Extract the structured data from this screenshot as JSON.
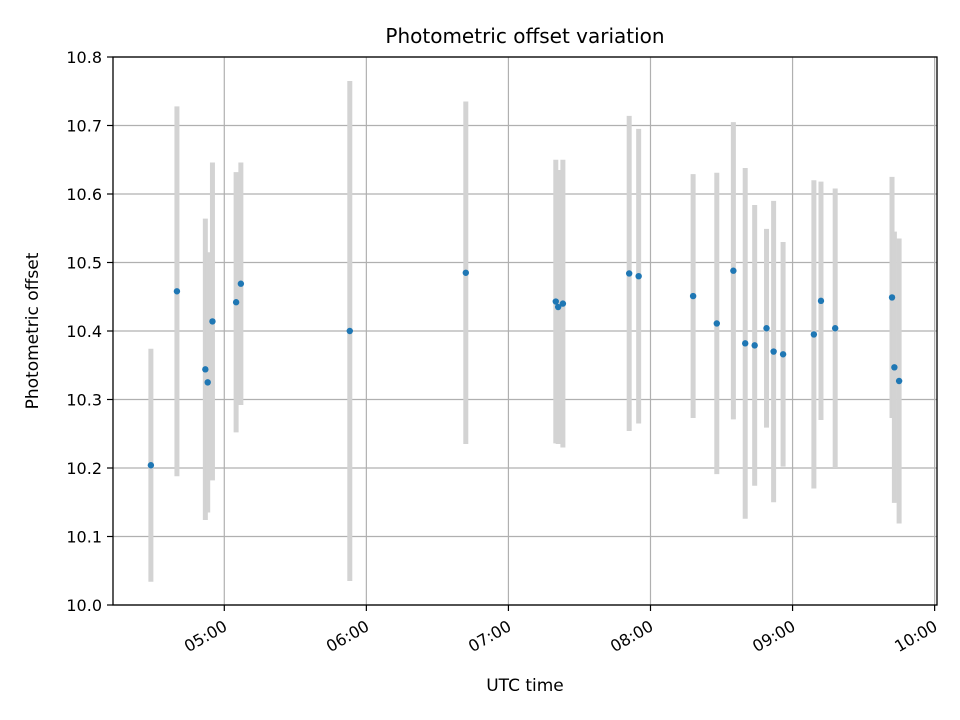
{
  "chart_data": {
    "type": "scatter",
    "title": "Photometric offset variation",
    "xlabel": "UTC time",
    "ylabel": "Photometric offset",
    "x_scale": "time",
    "xlim": [
      "04:13",
      "10:01"
    ],
    "ylim": [
      10.0,
      10.8
    ],
    "x_ticks": [
      "05:00",
      "06:00",
      "07:00",
      "08:00",
      "09:00",
      "10:00"
    ],
    "y_ticks": [
      "10.0",
      "10.1",
      "10.2",
      "10.3",
      "10.4",
      "10.5",
      "10.6",
      "10.7",
      "10.8"
    ],
    "grid": true,
    "colors": {
      "marker": "#1f77b4",
      "errorbar": "#d3d3d3",
      "grid": "#b0b0b0"
    },
    "series": [
      {
        "points": [
          {
            "x": "04:29",
            "y": 10.204,
            "err": 0.17
          },
          {
            "x": "04:40",
            "y": 10.458,
            "err": 0.27
          },
          {
            "x": "04:52",
            "y": 10.344,
            "err": 0.22
          },
          {
            "x": "04:53",
            "y": 10.325,
            "err": 0.19
          },
          {
            "x": "04:55",
            "y": 10.414,
            "err": 0.232
          },
          {
            "x": "05:05",
            "y": 10.442,
            "err": 0.19
          },
          {
            "x": "05:07",
            "y": 10.469,
            "err": 0.177
          },
          {
            "x": "05:53",
            "y": 10.4,
            "err": 0.365
          },
          {
            "x": "06:42",
            "y": 10.485,
            "err": 0.25
          },
          {
            "x": "07:20",
            "y": 10.443,
            "err": 0.207
          },
          {
            "x": "07:21",
            "y": 10.435,
            "err": 0.2
          },
          {
            "x": "07:23",
            "y": 10.44,
            "err": 0.21
          },
          {
            "x": "07:51",
            "y": 10.484,
            "err": 0.23
          },
          {
            "x": "07:55",
            "y": 10.48,
            "err": 0.215
          },
          {
            "x": "08:18",
            "y": 10.451,
            "err": 0.178
          },
          {
            "x": "08:28",
            "y": 10.411,
            "err": 0.22
          },
          {
            "x": "08:35",
            "y": 10.488,
            "err": 0.217
          },
          {
            "x": "08:40",
            "y": 10.382,
            "err": 0.256
          },
          {
            "x": "08:44",
            "y": 10.379,
            "err": 0.205
          },
          {
            "x": "08:49",
            "y": 10.404,
            "err": 0.145
          },
          {
            "x": "08:52",
            "y": 10.37,
            "err": 0.22
          },
          {
            "x": "08:56",
            "y": 10.366,
            "err": 0.164
          },
          {
            "x": "09:09",
            "y": 10.395,
            "err": 0.225
          },
          {
            "x": "09:12",
            "y": 10.444,
            "err": 0.174
          },
          {
            "x": "09:18",
            "y": 10.404,
            "err": 0.204
          },
          {
            "x": "09:42",
            "y": 10.449,
            "err": 0.176
          },
          {
            "x": "09:43",
            "y": 10.347,
            "err": 0.198
          },
          {
            "x": "09:45",
            "y": 10.327,
            "err": 0.208
          }
        ]
      }
    ]
  }
}
